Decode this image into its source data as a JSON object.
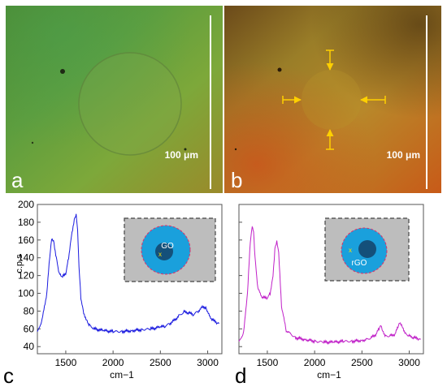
{
  "figure": {
    "panels": {
      "a": {
        "letter": "a",
        "scale_label": "100 μm"
      },
      "b": {
        "letter": "b",
        "scale_label": "100 μm"
      },
      "c": {
        "letter": "c"
      },
      "d": {
        "letter": "d"
      }
    },
    "colors": {
      "panel_a_bg": "#6a9a3a",
      "panel_b_bg": "#b07a20",
      "series_c": "#1a1adf",
      "series_d": "#c020c8",
      "inset_bg": "#bdbdbd",
      "inset_disc": "#1aa0dc",
      "inset_core": "#14507a",
      "inset_ring": "#e0306a",
      "marker_x": "#ffe000",
      "arrow": "#ffd000"
    },
    "insets": {
      "c": {
        "label": "GO",
        "marker": "x"
      },
      "d": {
        "label": "rGO",
        "marker": "x"
      }
    }
  },
  "chart_data": [
    {
      "type": "line",
      "panel": "c",
      "xlabel": "cm−1",
      "ylabel": "c.p.s",
      "xlim": [
        1200,
        3150
      ],
      "ylim": [
        32,
        200
      ],
      "x_ticks": [
        1500,
        2000,
        2500,
        3000
      ],
      "y_ticks": [
        40,
        60,
        80,
        100,
        120,
        140,
        160,
        180,
        200
      ],
      "series": [
        {
          "x": [
            1200,
            1250,
            1300,
            1330,
            1350,
            1370,
            1400,
            1430,
            1460,
            1500,
            1530,
            1560,
            1590,
            1610,
            1625,
            1640,
            1660,
            1690,
            1720,
            1750,
            1800,
            1900,
            2000,
            2100,
            2200,
            2300,
            2400,
            2500,
            2550,
            2600,
            2650,
            2700,
            2750,
            2800,
            2850,
            2900,
            2950,
            2980,
            3000,
            3050,
            3100,
            3120
          ],
          "y": [
            56,
            70,
            100,
            140,
            162,
            160,
            140,
            122,
            118,
            122,
            140,
            165,
            183,
            188,
            170,
            130,
            95,
            78,
            70,
            64,
            60,
            58,
            57,
            57,
            58,
            59,
            60,
            62,
            63,
            66,
            70,
            75,
            79,
            78,
            76,
            80,
            85,
            84,
            78,
            70,
            67,
            66
          ]
        }
      ]
    },
    {
      "type": "line",
      "panel": "d",
      "xlim": [
        1200,
        3150
      ],
      "ylim": [
        32,
        200
      ],
      "x_ticks": [
        1500,
        2000,
        2500,
        3000
      ],
      "series": [
        {
          "x": [
            1200,
            1250,
            1290,
            1320,
            1340,
            1355,
            1370,
            1400,
            1450,
            1500,
            1530,
            1560,
            1580,
            1600,
            1620,
            1650,
            1700,
            1800,
            1900,
            2000,
            2100,
            2200,
            2300,
            2400,
            2500,
            2550,
            2600,
            2650,
            2680,
            2700,
            2720,
            2750,
            2800,
            2850,
            2880,
            2900,
            2930,
            2960,
            3000,
            3050,
            3100,
            3120
          ],
          "y": [
            45,
            56,
            100,
            158,
            176,
            170,
            140,
            105,
            95,
            95,
            100,
            120,
            150,
            158,
            145,
            85,
            58,
            50,
            48,
            46,
            45,
            45,
            46,
            46,
            47,
            48,
            50,
            54,
            60,
            65,
            58,
            52,
            52,
            54,
            62,
            68,
            62,
            55,
            52,
            50,
            49,
            48
          ]
        }
      ]
    }
  ]
}
